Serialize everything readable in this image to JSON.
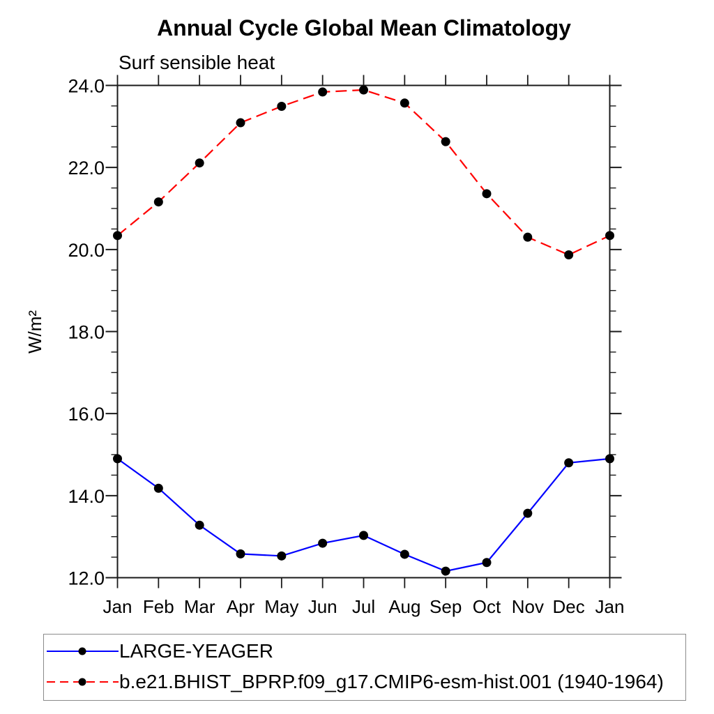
{
  "chart": {
    "title": "Annual Cycle Global Mean Climatology",
    "subtitle": "Surf sensible heat",
    "ylabel": "W/m²"
  },
  "chart_data": {
    "type": "line",
    "title": "Annual Cycle Global Mean Climatology",
    "subtitle": "Surf sensible heat",
    "xlabel": "",
    "ylabel": "W/m²",
    "categories": [
      "Jan",
      "Feb",
      "Mar",
      "Apr",
      "May",
      "Jun",
      "Jul",
      "Aug",
      "Sep",
      "Oct",
      "Nov",
      "Dec",
      "Jan"
    ],
    "ylim": [
      12.0,
      24.0
    ],
    "y_major_step": 2.0,
    "y_minor_step": 0.5,
    "y_tick_labels": [
      "12.0",
      "14.0",
      "16.0",
      "18.0",
      "20.0",
      "22.0",
      "24.0"
    ],
    "grid": false,
    "axis_color": "#1a1a1a",
    "marker": "filled-circle",
    "marker_color": "#000000",
    "legend_position": "bottom-left-boxed",
    "series": [
      {
        "name": "LARGE-YEAGER",
        "color": "#0000ff",
        "line_style": "solid",
        "values": [
          14.9,
          14.18,
          13.28,
          12.58,
          12.53,
          12.84,
          13.03,
          12.57,
          12.16,
          12.37,
          13.57,
          14.8,
          14.9
        ]
      },
      {
        "name": "b.e21.BHIST_BPRP.f09_g17.CMIP6-esm-hist.001 (1940-1964)",
        "color": "#ff0000",
        "line_style": "dashed",
        "values": [
          20.34,
          21.16,
          22.11,
          23.09,
          23.49,
          23.84,
          23.89,
          23.57,
          22.63,
          21.36,
          20.3,
          19.87,
          20.34
        ]
      }
    ]
  }
}
